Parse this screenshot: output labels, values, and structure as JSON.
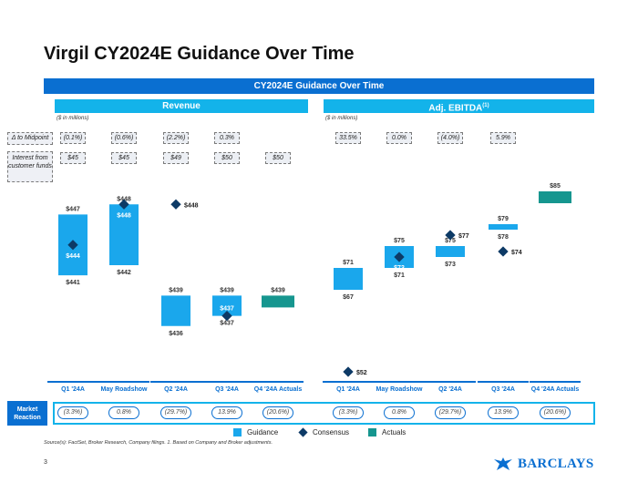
{
  "title": "Virgil CY2024E Guidance Over Time",
  "banner": "CY2024E Guidance Over Time",
  "sections": {
    "revenue": {
      "title": "Revenue",
      "units": "($ in millions)"
    },
    "ebitda": {
      "title": "Adj. EBITDA",
      "sup": "(1)",
      "units": "($ in millions)"
    }
  },
  "row_labels": {
    "midpoint": "Δ to Midpoint",
    "interest": "Interest from customer funds"
  },
  "midpoint": {
    "revenue": [
      "(0.1%)",
      "(0.6%)",
      "(2.2%)",
      "0.3%"
    ],
    "ebitda": [
      "33.5%",
      "0.0%",
      "(4.0%)",
      "5.9%"
    ]
  },
  "interest": [
    "$45",
    "$45",
    "$49",
    "$50",
    "$50"
  ],
  "colors": {
    "guidance": "#1aa7ec",
    "consensus": "#0d3a66",
    "actuals": "#16968f",
    "accent": "#0a6fd1"
  },
  "chart_data": [
    {
      "type": "range-bar",
      "title": "Revenue",
      "ylabel": "($ in millions)",
      "categories": [
        "Q1 '24A",
        "May Roadshow",
        "Q2 '24A",
        "Q3 '24A",
        "Q4 '24A Actuals"
      ],
      "guidance_high": [
        447,
        448,
        439,
        439,
        null
      ],
      "guidance_low": [
        441,
        442,
        436,
        437,
        null
      ],
      "guidance_high_labels": [
        "$447",
        "$448",
        "$439",
        "$439",
        ""
      ],
      "guidance_low_labels": [
        "$441",
        "$442",
        "$436",
        "$437",
        ""
      ],
      "consensus": [
        444,
        448,
        448,
        437,
        null
      ],
      "consensus_labels": [
        "$444",
        "$448",
        "$448",
        "$437",
        ""
      ],
      "actual": [
        null,
        null,
        null,
        null,
        439
      ],
      "actual_labels": [
        "",
        "",
        "",
        "",
        "$439"
      ],
      "ylim": [
        434,
        450
      ]
    },
    {
      "type": "range-bar",
      "title": "Adj. EBITDA",
      "ylabel": "($ in millions)",
      "categories": [
        "Q1 '24A",
        "May Roadshow",
        "Q2 '24A",
        "Q3 '24A",
        "Q4 '24A Actuals"
      ],
      "guidance_high": [
        71,
        75,
        75,
        79,
        null
      ],
      "guidance_low": [
        67,
        71,
        73,
        78,
        null
      ],
      "guidance_high_labels": [
        "$71",
        "$75",
        "$75",
        "$79",
        ""
      ],
      "guidance_low_labels": [
        "$67",
        "$71",
        "$73",
        "$78",
        ""
      ],
      "consensus": [
        52,
        73,
        77,
        74,
        null
      ],
      "consensus_labels": [
        "$52",
        "$73",
        "$77",
        "$74",
        ""
      ],
      "actual": [
        null,
        null,
        null,
        null,
        85
      ],
      "actual_labels": [
        "",
        "",
        "",
        "",
        "$85"
      ],
      "ylim": [
        50,
        88
      ]
    }
  ],
  "categories": [
    "Q1 '24A",
    "May Roadshow",
    "Q2 '24A",
    "Q3 '24A",
    "Q4 '24A Actuals"
  ],
  "market_reaction": {
    "label": "Market Reaction",
    "revenue": [
      "(3.3%)",
      "0.8%",
      "(29.7%)",
      "13.9%",
      "(20.6%)"
    ],
    "ebitda": [
      "(3.3%)",
      "0.8%",
      "(29.7%)",
      "13.9%",
      "(20.6%)"
    ]
  },
  "legend": {
    "guidance": "Guidance",
    "consensus": "Consensus",
    "actuals": "Actuals"
  },
  "source": "Source(s): FactSet, Broker Research, Company filings. 1. Based on Company and Broker adjustments.",
  "page_number": "3",
  "brand": "BARCLAYS"
}
